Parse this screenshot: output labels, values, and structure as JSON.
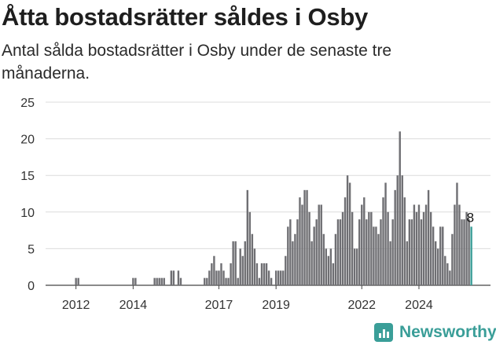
{
  "header": {
    "title": "Åtta bostadsrätter såldes i Osby",
    "subtitle": "Antal sålda bostadsrätter i Osby under de senaste tre månaderna."
  },
  "brand": {
    "name": "Newsworthy",
    "icon": "newsworthy-logo-icon",
    "color": "#3a9e98"
  },
  "chart_data": {
    "type": "bar",
    "x_start": "2011-08",
    "x_unit": "month",
    "ylim": [
      0,
      25
    ],
    "yticks": [
      0,
      5,
      10,
      15,
      20,
      25
    ],
    "xticks": [
      {
        "label": "2012",
        "x": "2012-01"
      },
      {
        "label": "2014",
        "x": "2014-01"
      },
      {
        "label": "2017",
        "x": "2017-01"
      },
      {
        "label": "2019",
        "x": "2019-01"
      },
      {
        "label": "2022",
        "x": "2022-01"
      },
      {
        "label": "2024",
        "x": "2024-01"
      }
    ],
    "grid": true,
    "bar_color": "#6f6f73",
    "highlight_color": "#3a9e98",
    "highlight_label": "8",
    "values": [
      0,
      0,
      0,
      0,
      0,
      1,
      1,
      0,
      0,
      0,
      0,
      0,
      0,
      0,
      0,
      0,
      0,
      0,
      0,
      0,
      0,
      0,
      0,
      0,
      0,
      0,
      0,
      0,
      0,
      1,
      1,
      0,
      0,
      0,
      0,
      0,
      0,
      0,
      1,
      1,
      1,
      1,
      1,
      0,
      0,
      2,
      2,
      0,
      2,
      1,
      0,
      0,
      0,
      0,
      0,
      0,
      0,
      0,
      0,
      1,
      1,
      2,
      3,
      4,
      2,
      2,
      3,
      2,
      1,
      1,
      3,
      6,
      6,
      1,
      5,
      4,
      6,
      13,
      10,
      7,
      5,
      3,
      1,
      3,
      3,
      3,
      2,
      1,
      0,
      2,
      2,
      2,
      2,
      4,
      8,
      9,
      6,
      7,
      9,
      12,
      11,
      13,
      13,
      10,
      6,
      8,
      9,
      11,
      11,
      7,
      5,
      4,
      5,
      3,
      7,
      9,
      9,
      10,
      12,
      15,
      14,
      10,
      5,
      5,
      9,
      11,
      12,
      9,
      10,
      10,
      8,
      8,
      7,
      9,
      12,
      14,
      10,
      6,
      9,
      13,
      15,
      21,
      15,
      12,
      6,
      9,
      9,
      11,
      10,
      11,
      9,
      10,
      11,
      13,
      10,
      8,
      6,
      5,
      8,
      8,
      4,
      3,
      2,
      7,
      11,
      14,
      11,
      9,
      9,
      10,
      9,
      8
    ]
  }
}
